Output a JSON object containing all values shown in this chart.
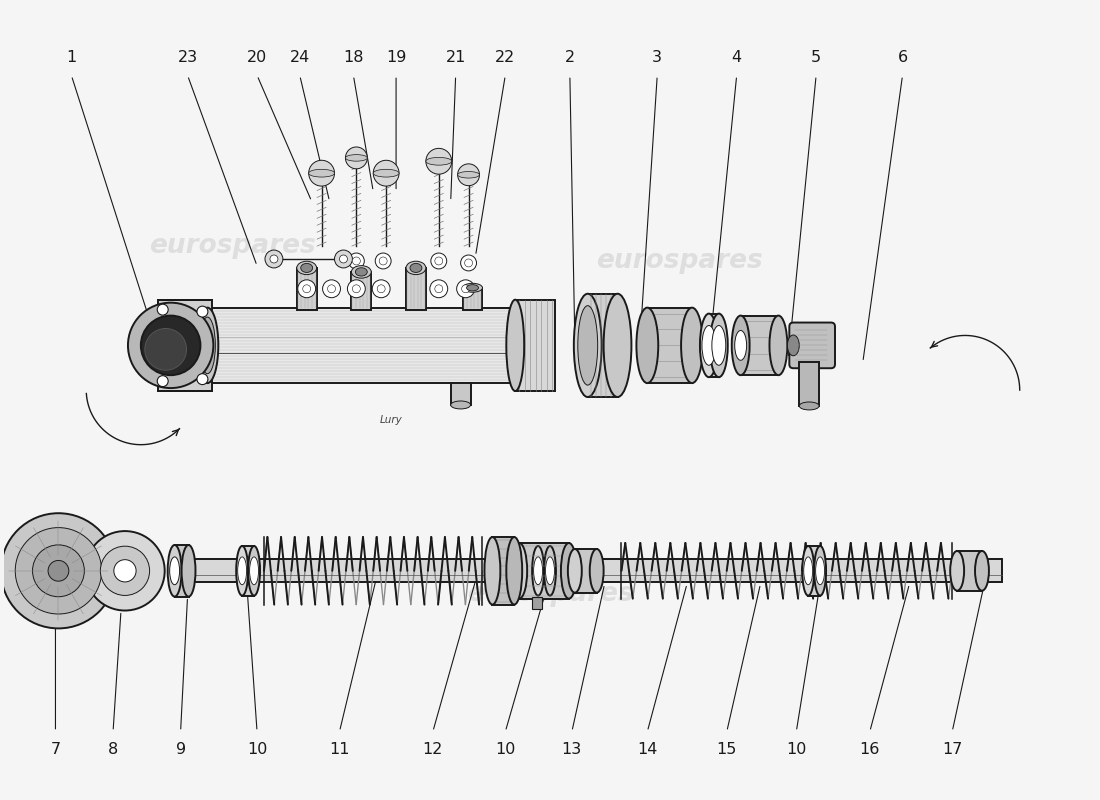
{
  "background_color": "#f5f5f5",
  "line_color": "#1a1a1a",
  "watermark_color": "#cccccc",
  "upper_labels": [
    [
      1,
      0.68,
      7.45,
      1.55,
      4.55
    ],
    [
      23,
      1.85,
      7.45,
      2.55,
      5.35
    ],
    [
      20,
      2.55,
      7.45,
      3.1,
      6.0
    ],
    [
      24,
      2.98,
      7.45,
      3.28,
      6.0
    ],
    [
      18,
      3.52,
      7.45,
      3.72,
      6.1
    ],
    [
      19,
      3.95,
      7.45,
      3.95,
      6.1
    ],
    [
      21,
      4.55,
      7.45,
      4.5,
      6.0
    ],
    [
      22,
      5.05,
      7.45,
      4.75,
      5.45
    ],
    [
      2,
      5.7,
      7.45,
      5.75,
      4.6
    ],
    [
      3,
      6.58,
      7.45,
      6.4,
      4.5
    ],
    [
      4,
      7.38,
      7.45,
      7.1,
      4.45
    ],
    [
      5,
      8.18,
      7.45,
      7.9,
      4.42
    ],
    [
      6,
      9.05,
      7.45,
      8.65,
      4.38
    ]
  ],
  "lower_labels": [
    [
      7,
      0.52,
      0.48,
      0.52,
      1.72
    ],
    [
      8,
      1.1,
      0.48,
      1.18,
      1.88
    ],
    [
      9,
      1.78,
      0.48,
      1.85,
      2.02
    ],
    [
      10,
      2.55,
      0.48,
      2.45,
      2.1
    ],
    [
      11,
      3.38,
      0.48,
      3.75,
      2.2
    ],
    [
      12,
      4.32,
      0.48,
      4.75,
      2.18
    ],
    [
      10,
      5.05,
      0.48,
      5.48,
      2.15
    ],
    [
      13,
      5.72,
      0.48,
      6.05,
      2.15
    ],
    [
      14,
      6.48,
      0.48,
      6.88,
      2.15
    ],
    [
      15,
      7.28,
      0.48,
      7.62,
      2.15
    ],
    [
      10,
      7.98,
      0.48,
      8.22,
      2.15
    ],
    [
      16,
      8.72,
      0.48,
      9.12,
      2.15
    ],
    [
      17,
      9.55,
      0.48,
      9.88,
      2.18
    ]
  ]
}
